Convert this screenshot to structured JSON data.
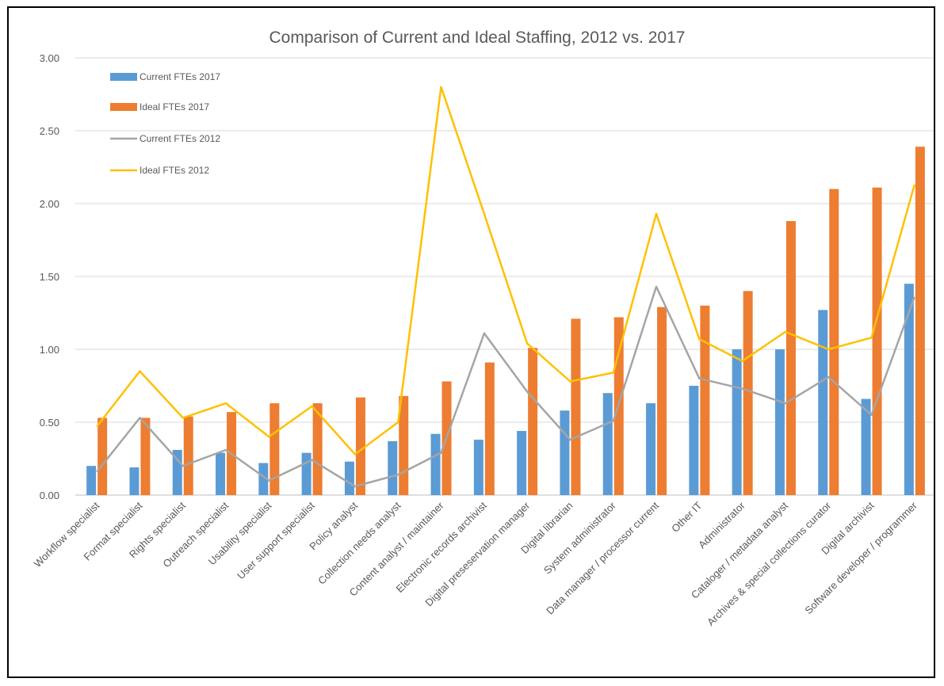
{
  "chart_data": {
    "type": "bar",
    "title": "Comparison of Current and Ideal Staffing, 2012 vs. 2017",
    "xlabel": "",
    "ylabel": "",
    "ylim": [
      0,
      3
    ],
    "y_ticks": [
      "0.00",
      "0.50",
      "1.00",
      "1.50",
      "2.00",
      "2.50",
      "3.00"
    ],
    "grid": true,
    "legend_position": "top-left",
    "categories": [
      "Workflow specialist",
      "Format specialist",
      "Rights specialist",
      "Outreach specialist",
      "Usability specialist",
      "User support specialist",
      "Policy analyst",
      "Collection needs analyst",
      "Content analyst / maintainer",
      "Electronic records archivist",
      "Digital preseservation manager",
      "Digital librarian",
      "System administrator",
      "Data manager / processor current",
      "Other IT",
      "Administrator",
      "Cataloger / metadata analyst",
      "Archives & special collections curator",
      "Digital archivist",
      "Software developer / programmer"
    ],
    "series": [
      {
        "name": "Current FTEs 2017",
        "kind": "bar",
        "color": "#5b9bd5",
        "values": [
          0.2,
          0.19,
          0.31,
          0.29,
          0.22,
          0.29,
          0.23,
          0.37,
          0.42,
          0.38,
          0.44,
          0.58,
          0.7,
          0.63,
          0.75,
          1.0,
          1.0,
          1.27,
          0.66,
          1.45
        ]
      },
      {
        "name": "Ideal FTEs 2017",
        "kind": "bar",
        "color": "#ed7d31",
        "values": [
          0.53,
          0.53,
          0.54,
          0.57,
          0.63,
          0.63,
          0.67,
          0.68,
          0.78,
          0.91,
          1.01,
          1.21,
          1.22,
          1.29,
          1.3,
          1.4,
          1.88,
          2.1,
          2.11,
          2.39
        ]
      },
      {
        "name": "Current FTEs 2012",
        "kind": "line",
        "color": "#a5a5a5",
        "values": [
          0.16,
          0.53,
          0.2,
          0.31,
          0.1,
          0.24,
          0.06,
          0.14,
          0.29,
          1.11,
          0.71,
          0.38,
          0.51,
          1.43,
          0.8,
          0.73,
          0.63,
          0.81,
          0.55,
          1.36
        ]
      },
      {
        "name": "Ideal FTEs 2012",
        "kind": "line",
        "color": "#ffc000",
        "values": [
          0.47,
          0.85,
          0.53,
          0.63,
          0.4,
          0.61,
          0.28,
          0.5,
          2.8,
          1.93,
          1.04,
          0.78,
          0.84,
          1.93,
          1.07,
          0.92,
          1.12,
          1.0,
          1.08,
          2.13
        ]
      }
    ]
  }
}
